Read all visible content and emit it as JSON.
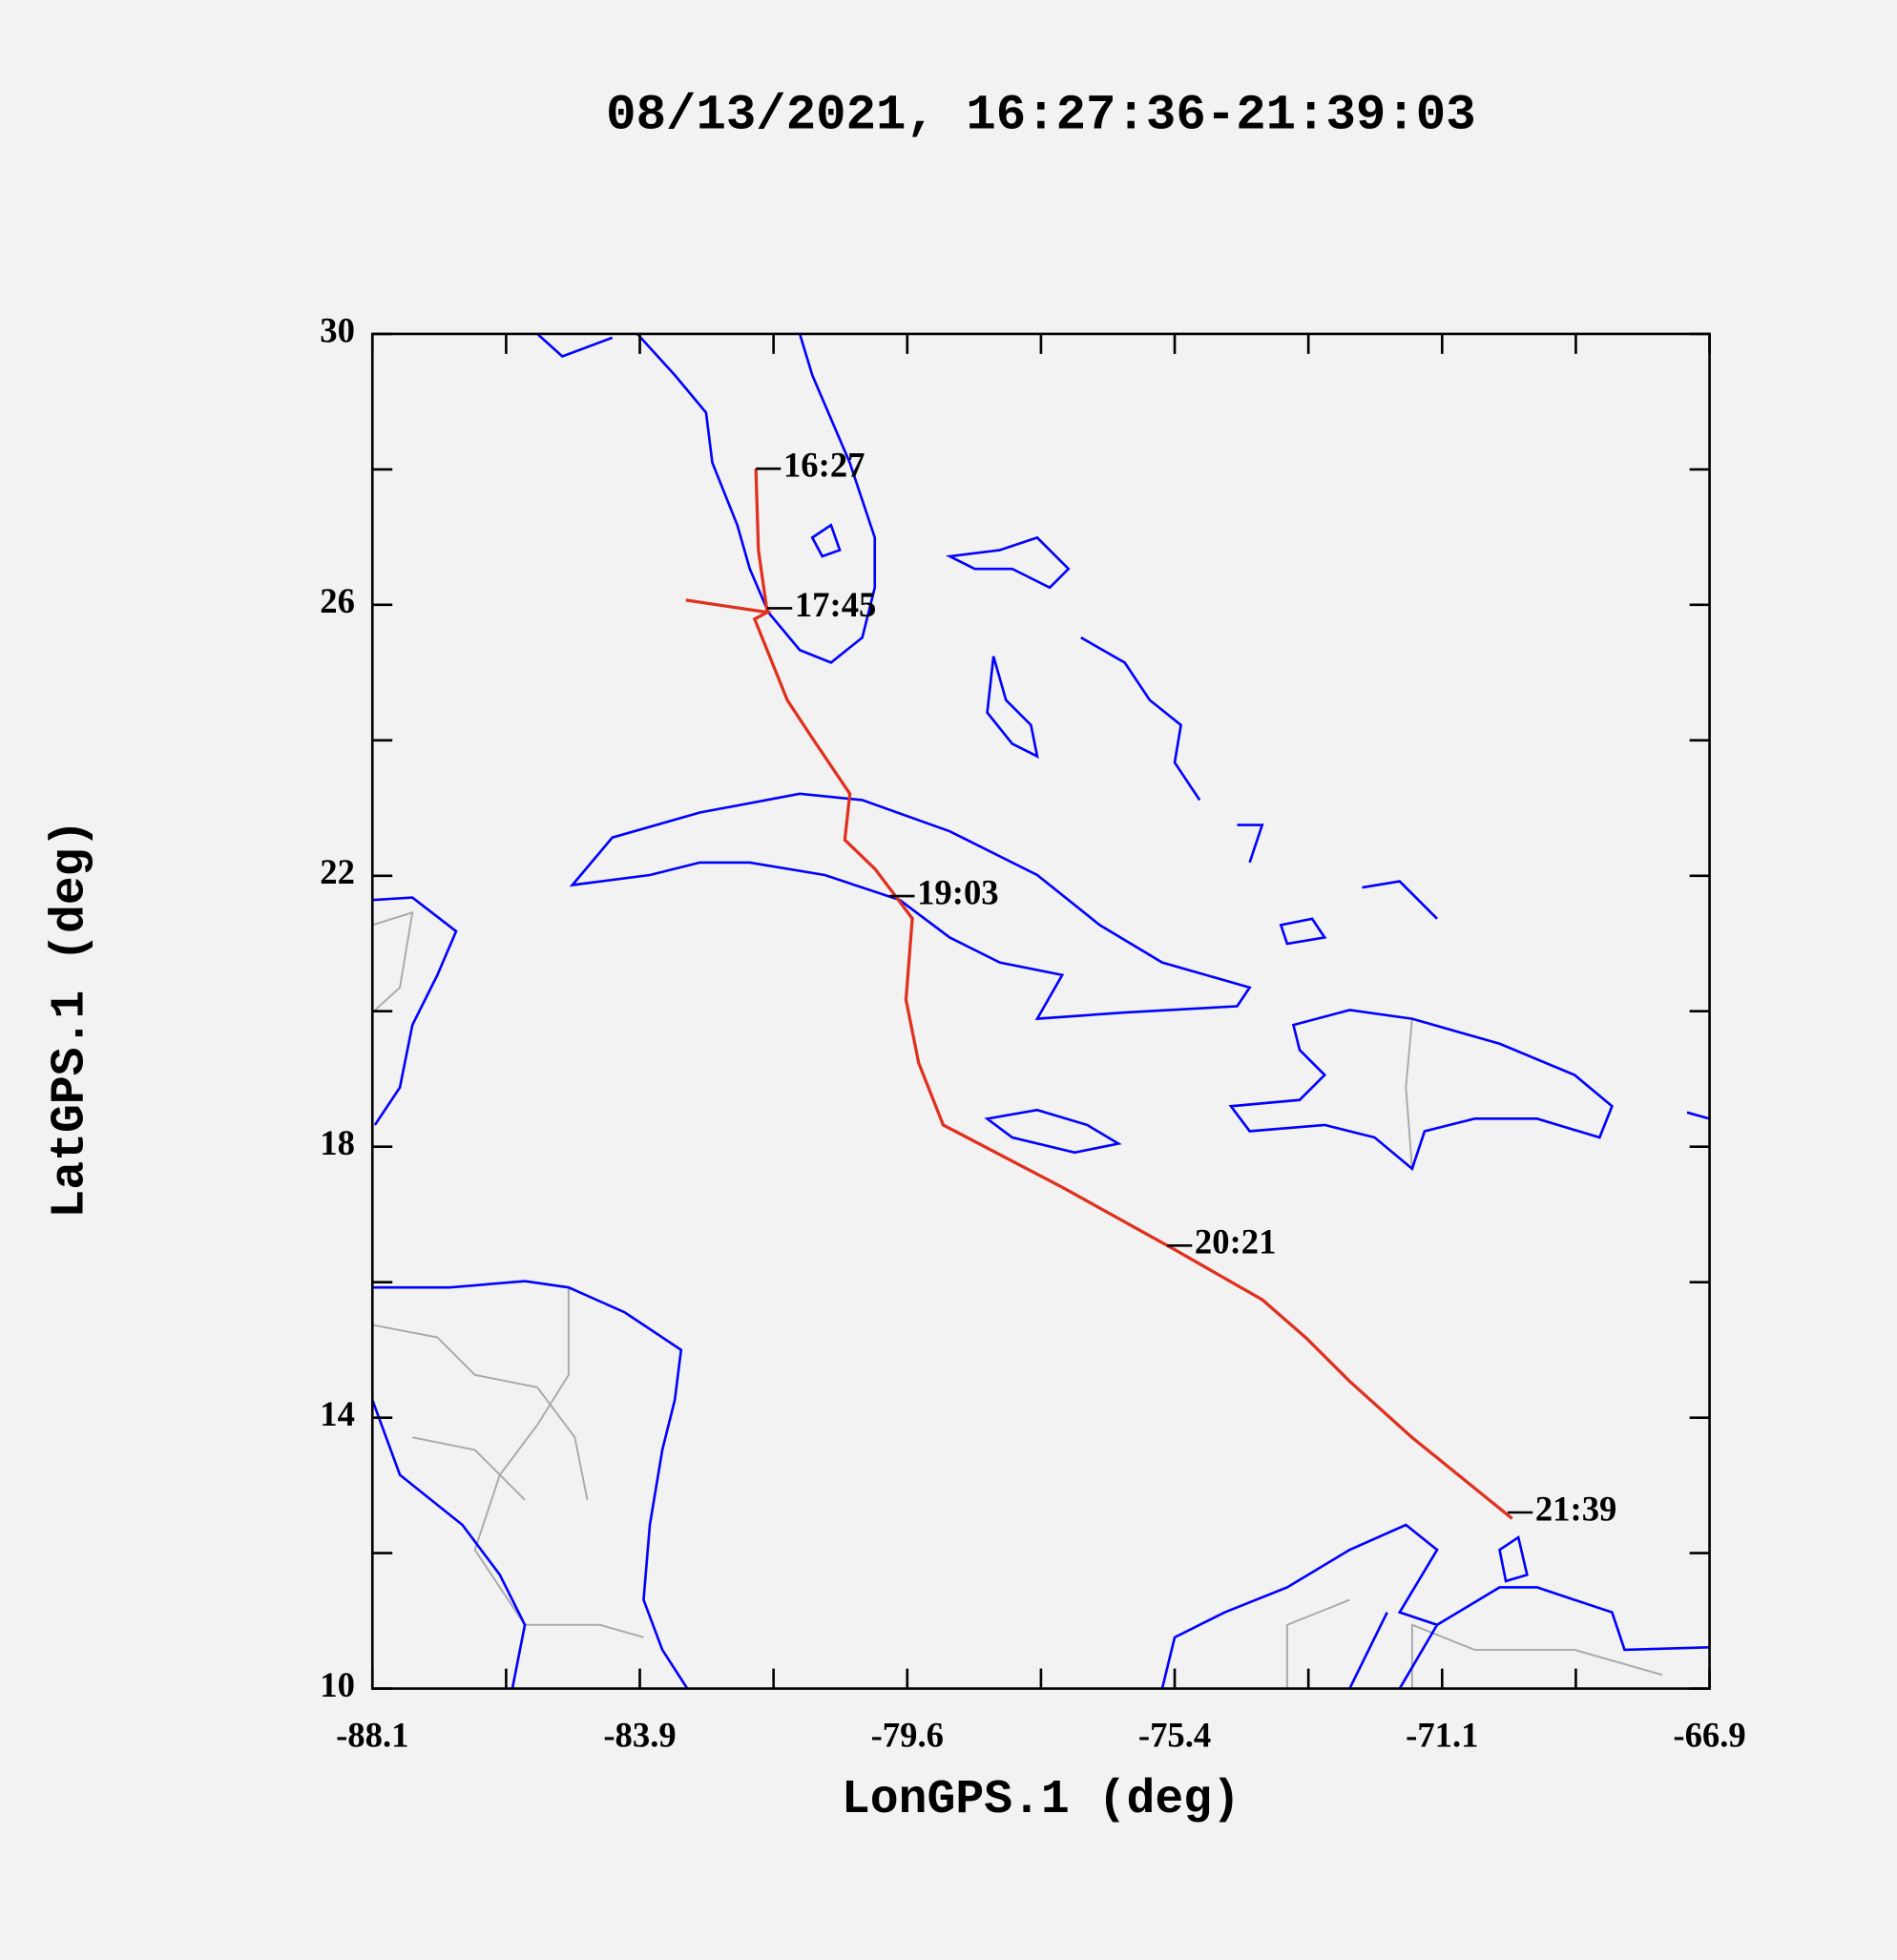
{
  "chart_data": {
    "type": "line",
    "title": "08/13/2021, 16:27:36-21:39:03",
    "x_label": "LonGPS.1 (deg)",
    "y_label": "LatGPS.1 (deg)",
    "xlim": [
      -88.1,
      -66.9
    ],
    "ylim": [
      10,
      30
    ],
    "xticks": [
      {
        "value": -88.1,
        "label": "-88.1"
      },
      {
        "value": -83.86,
        "label": "-83.9"
      },
      {
        "value": -79.62,
        "label": "-79.6"
      },
      {
        "value": -75.38,
        "label": "-75.4"
      },
      {
        "value": -71.14,
        "label": "-71.1"
      },
      {
        "value": -66.9,
        "label": "-66.9"
      }
    ],
    "xminorticks": [
      -85.98,
      -81.74,
      -77.5,
      -73.26,
      -69.02
    ],
    "yticks": [
      10,
      14,
      18,
      22,
      26,
      30
    ],
    "yminorticks": [
      12,
      16,
      20,
      24,
      28
    ],
    "series": [
      {
        "color": "#e0301e",
        "x": [
          -82.02,
          -81.98,
          -81.84,
          -83.13,
          -81.84,
          -82.04,
          -81.52,
          -81.13,
          -80.53,
          -80.61,
          -80.13,
          -79.54,
          -79.64,
          -79.44,
          -79.05,
          -77.16,
          -75.38,
          -73.99,
          -73.3,
          -72.61,
          -71.62,
          -70.03
        ],
        "values": [
          28.01,
          26.81,
          25.89,
          26.07,
          25.89,
          25.79,
          24.59,
          24.04,
          23.21,
          22.53,
          22.1,
          21.37,
          20.17,
          19.24,
          18.32,
          17.4,
          16.48,
          15.74,
          15.18,
          14.54,
          13.71,
          12.51
        ]
      }
    ],
    "annotations": [
      {
        "text": "16:27",
        "x": -82.02,
        "y": 28.01
      },
      {
        "text": "17:45",
        "x": -81.84,
        "y": 25.95
      },
      {
        "text": "19:03",
        "x": -79.9,
        "y": 21.7
      },
      {
        "text": "20:21",
        "x": -75.5,
        "y": 16.54
      },
      {
        "text": "21:39",
        "x": -70.1,
        "y": 12.6
      }
    ]
  }
}
